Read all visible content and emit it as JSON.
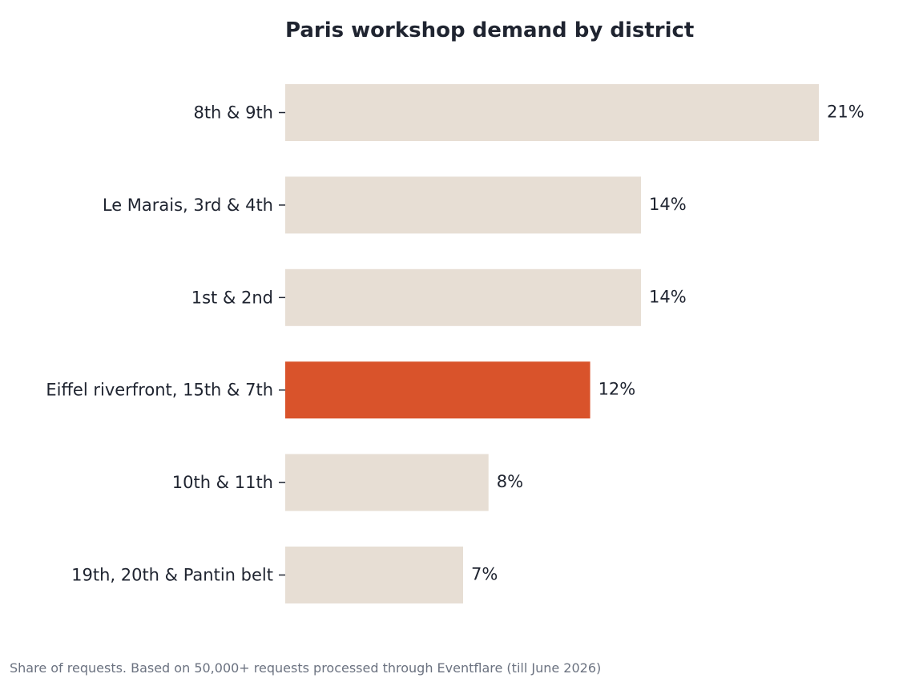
{
  "colors": {
    "text": "#1f2430",
    "muted": "#6b7280",
    "bar_default": "#e7ded4",
    "bar_highlight": "#d9532b"
  },
  "footnote": "Share of requests. Based on 50,000+ requests processed through Eventflare (till June 2026)",
  "chart_data": {
    "type": "bar",
    "orientation": "horizontal",
    "title": "Paris workshop demand by district",
    "xlabel": "",
    "ylabel": "",
    "categories": [
      "8th & 9th",
      "Le Marais, 3rd & 4th",
      "1st & 2nd",
      "Eiffel riverfront, 15th & 7th",
      "10th & 11th",
      "19th, 20th & Pantin belt"
    ],
    "values": [
      21,
      14,
      14,
      12,
      8,
      7
    ],
    "value_labels": [
      "21%",
      "14%",
      "14%",
      "12%",
      "8%",
      "7%"
    ],
    "unit": "%",
    "highlight_category": "Eiffel riverfront, 15th & 7th",
    "xlim": [
      0,
      21
    ],
    "grid": false,
    "legend": "none"
  }
}
